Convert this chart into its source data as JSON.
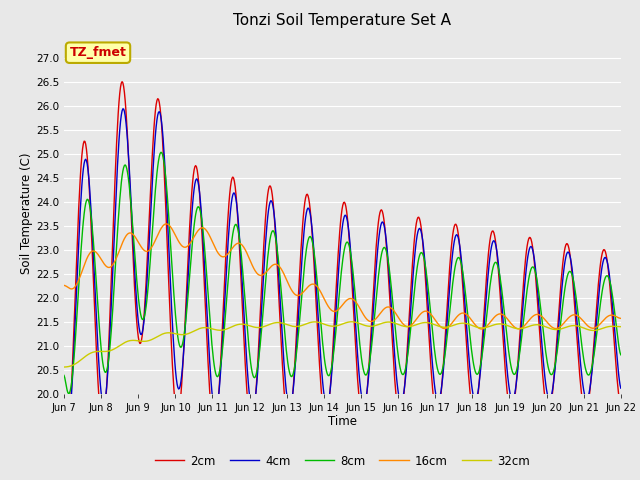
{
  "title": "Tonzi Soil Temperature Set A",
  "xlabel": "Time",
  "ylabel": "Soil Temperature (C)",
  "annotation": "TZ_fmet",
  "annotation_color": "#cc0000",
  "annotation_bg": "#ffffaa",
  "annotation_border": "#bbaa00",
  "ylim": [
    20.0,
    27.5
  ],
  "yticks": [
    20.0,
    20.5,
    21.0,
    21.5,
    22.0,
    22.5,
    23.0,
    23.5,
    24.0,
    24.5,
    25.0,
    25.5,
    26.0,
    26.5,
    27.0
  ],
  "xtick_labels": [
    "Jun 7",
    "Jun 8",
    "Jun 9",
    "Jun 10",
    "Jun 11",
    "Jun 12",
    "Jun 13",
    "Jun 14",
    "Jun 15",
    "Jun 16",
    "Jun 17",
    "Jun 18",
    "Jun 19",
    "Jun 20",
    "Jun 21",
    "Jun 22"
  ],
  "series_colors": [
    "#dd0000",
    "#0000cc",
    "#00bb00",
    "#ff8800",
    "#cccc00"
  ],
  "series_labels": [
    "2cm",
    "4cm",
    "8cm",
    "16cm",
    "32cm"
  ],
  "line_width": 1.0,
  "plot_bg_color": "#e8e8e8",
  "fig_bg_color": "#e8e8e8",
  "grid_color": "#ffffff",
  "n_days": 15,
  "pts_per_day": 48
}
